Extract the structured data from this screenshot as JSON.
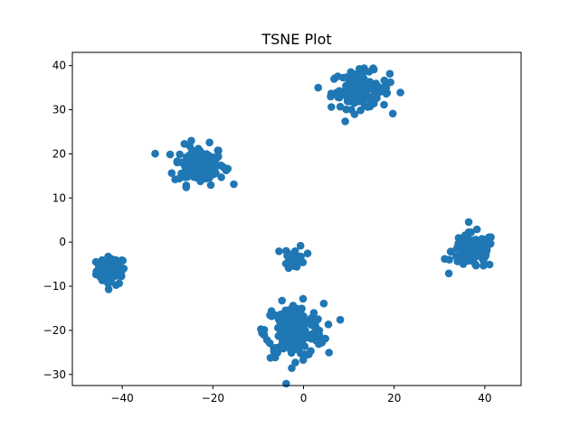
{
  "chart_data": {
    "type": "scatter",
    "title": "TSNE Plot",
    "xlabel": "",
    "ylabel": "",
    "xlim": [
      -51,
      48
    ],
    "ylim": [
      -32.5,
      43
    ],
    "xticks": [
      -40,
      -20,
      0,
      20,
      40
    ],
    "yticks": [
      -30,
      -20,
      -10,
      0,
      10,
      20,
      30,
      40
    ],
    "xtick_labels": [
      "−40",
      "−20",
      "0",
      "20",
      "40"
    ],
    "ytick_labels": [
      "−30",
      "−20",
      "−10",
      "0",
      "10",
      "20",
      "30",
      "40"
    ],
    "marker_color": "#1f77b4",
    "grid": false,
    "legend": "none",
    "clusters": [
      {
        "center": [
          -42.5,
          -6.5
        ],
        "spread": [
          1.6,
          1.6
        ],
        "count": 70
      },
      {
        "center": [
          -23,
          17.5
        ],
        "spread": [
          2.8,
          2.2
        ],
        "count": 130
      },
      {
        "center": [
          12.5,
          34.5
        ],
        "spread": [
          3.2,
          2.1
        ],
        "count": 130
      },
      {
        "center": [
          37.5,
          -2
        ],
        "spread": [
          2.4,
          2.0
        ],
        "count": 120
      },
      {
        "center": [
          -2,
          -3.5
        ],
        "spread": [
          1.2,
          1.4
        ],
        "count": 25
      },
      {
        "center": [
          -2,
          -20
        ],
        "spread": [
          3.2,
          3.0
        ],
        "count": 200
      }
    ]
  }
}
